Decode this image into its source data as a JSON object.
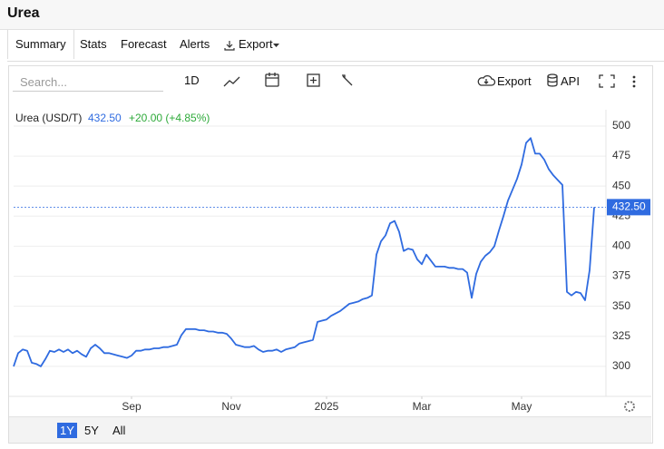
{
  "header": {
    "title": "Urea"
  },
  "tabs": [
    "Summary",
    "Stats",
    "Forecast",
    "Alerts",
    "Export"
  ],
  "toolbar": {
    "search": "Search...",
    "interval": "1D",
    "export": "Export",
    "api": "API"
  },
  "ranges": [
    "1Y",
    "5Y",
    "All"
  ],
  "active_range": "1Y",
  "chart_data": {
    "type": "line",
    "legend": {
      "name": "Urea (USD/T)",
      "price": "432.50",
      "change": "+20.00 (+4.85%)"
    },
    "color": "#2f6be0",
    "values": [
      300,
      311,
      314,
      313,
      303,
      302,
      300,
      306,
      313,
      312,
      314,
      312,
      314,
      311,
      313,
      310,
      308,
      315,
      318,
      315,
      311,
      311,
      310,
      309,
      308,
      307,
      309,
      313,
      313,
      314,
      314,
      315,
      315,
      316,
      316,
      317,
      318,
      326,
      331,
      331,
      331,
      330,
      330,
      329,
      329,
      328,
      328,
      327,
      323,
      318,
      317,
      316,
      316,
      317,
      314,
      312,
      313,
      313,
      314,
      312,
      314,
      315,
      316,
      319,
      320,
      321,
      322,
      337,
      338,
      339,
      342,
      344,
      346,
      349,
      352,
      353,
      354,
      356,
      357,
      359,
      393,
      404,
      409,
      419,
      421,
      412,
      396,
      398,
      397,
      389,
      385,
      393,
      388,
      383,
      383,
      383,
      382,
      382,
      381,
      381,
      378,
      357,
      377,
      387,
      392,
      395,
      400,
      413,
      425,
      438,
      447,
      456,
      468,
      486,
      490,
      477,
      477,
      472,
      464,
      459,
      455,
      451,
      362,
      359,
      362,
      361,
      355,
      380,
      432.5
    ],
    "xticks": [
      {
        "value": 26,
        "label": "Sep"
      },
      {
        "value": 48,
        "label": "Nov"
      },
      {
        "value": 69,
        "label": "2025"
      },
      {
        "value": 90,
        "label": "Mar"
      },
      {
        "value": 112,
        "label": "May"
      }
    ],
    "ylim": [
      275,
      506
    ],
    "yticks": [
      300,
      325,
      350,
      375,
      400,
      425,
      450,
      475,
      500
    ],
    "grid": true
  }
}
